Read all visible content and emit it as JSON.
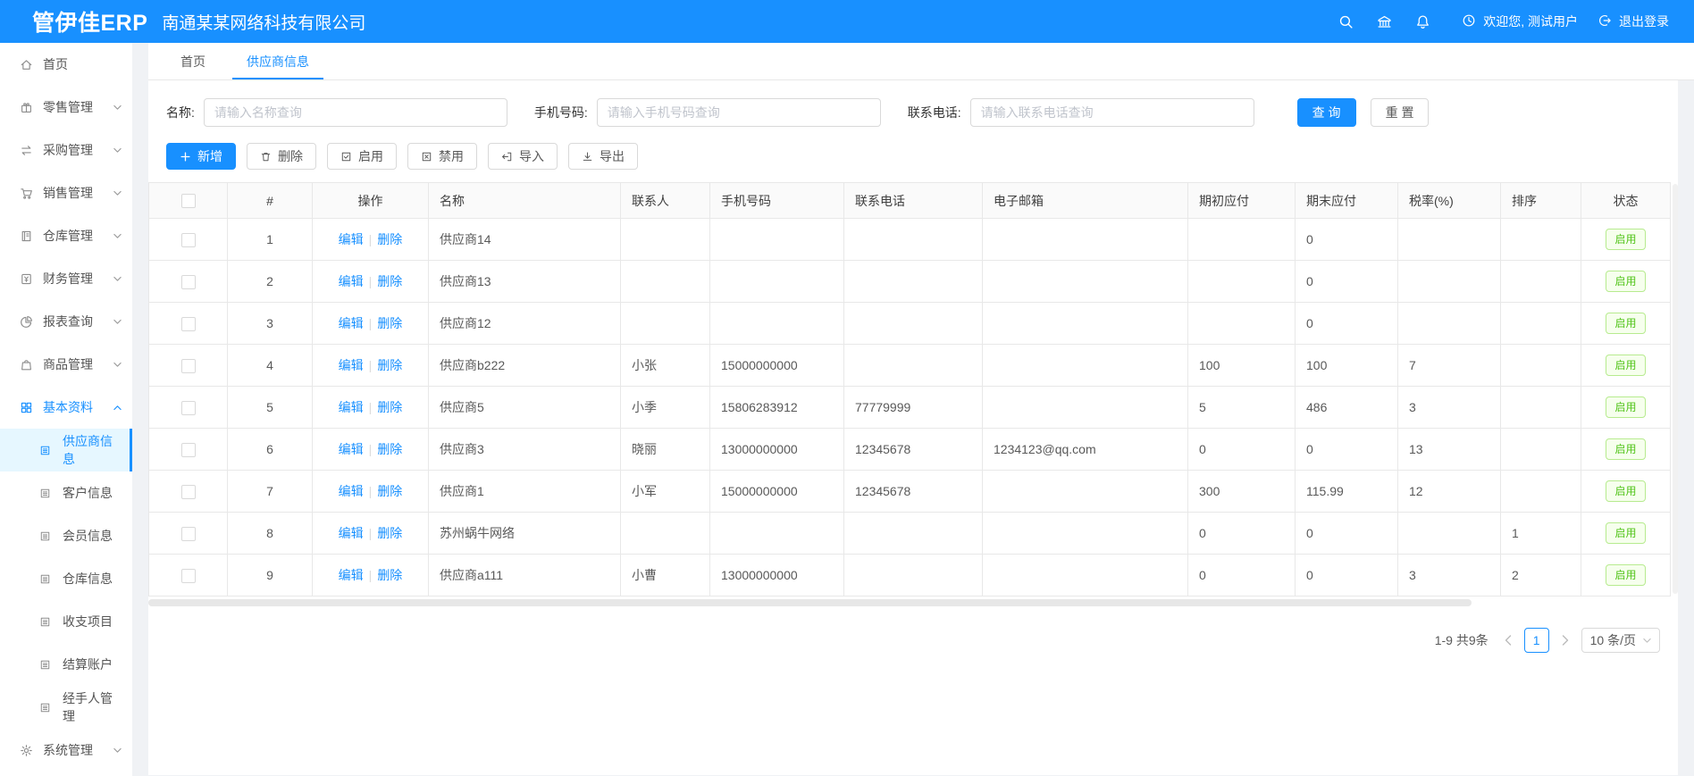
{
  "header": {
    "logo": "管伊佳ERP",
    "company": "南通某某网络科技有限公司",
    "welcome": "欢迎您, 测试用户",
    "logout": "退出登录",
    "action_icons": [
      "search-icon",
      "bank-icon",
      "bell-icon"
    ]
  },
  "sidebar": {
    "items": [
      {
        "key": "home",
        "label": "首页",
        "icon": "home-icon",
        "level": 1
      },
      {
        "key": "retail",
        "label": "零售管理",
        "icon": "gift-icon",
        "level": 1,
        "chevron": "down"
      },
      {
        "key": "purchase",
        "label": "采购管理",
        "icon": "swap-icon",
        "level": 1,
        "chevron": "down"
      },
      {
        "key": "sales",
        "label": "销售管理",
        "icon": "cart-icon",
        "level": 1,
        "chevron": "down"
      },
      {
        "key": "warehouse",
        "label": "仓库管理",
        "icon": "notebook-icon",
        "level": 1,
        "chevron": "down"
      },
      {
        "key": "finance",
        "label": "财务管理",
        "icon": "money-icon",
        "level": 1,
        "chevron": "down"
      },
      {
        "key": "reports",
        "label": "报表查询",
        "icon": "pie-chart-icon",
        "level": 1,
        "chevron": "down"
      },
      {
        "key": "goods",
        "label": "商品管理",
        "icon": "bag-icon",
        "level": 1,
        "chevron": "down"
      },
      {
        "key": "basic-data",
        "label": "基本资料",
        "icon": "grid-icon",
        "level": 1,
        "chevron": "up",
        "open": true
      },
      {
        "key": "supplier-info",
        "label": "供应商信息",
        "icon": "doc-icon",
        "level": 2,
        "selected": true
      },
      {
        "key": "customer-info",
        "label": "客户信息",
        "icon": "doc-icon",
        "level": 2
      },
      {
        "key": "member-info",
        "label": "会员信息",
        "icon": "doc-icon",
        "level": 2
      },
      {
        "key": "warehouse-info",
        "label": "仓库信息",
        "icon": "doc-icon",
        "level": 2
      },
      {
        "key": "income-expense",
        "label": "收支项目",
        "icon": "doc-icon",
        "level": 2
      },
      {
        "key": "settlement-account",
        "label": "结算账户",
        "icon": "doc-icon",
        "level": 2
      },
      {
        "key": "handler-mgmt",
        "label": "经手人管理",
        "icon": "doc-icon",
        "level": 2
      },
      {
        "key": "system",
        "label": "系统管理",
        "icon": "gear-icon",
        "level": 1,
        "chevron": "down"
      }
    ]
  },
  "tabs": [
    {
      "key": "home",
      "label": "首页",
      "active": false
    },
    {
      "key": "supplier-info",
      "label": "供应商信息",
      "active": true
    }
  ],
  "filters": {
    "fields": [
      {
        "key": "name",
        "label": "名称:",
        "placeholder": "请输入名称查询"
      },
      {
        "key": "mobile",
        "label": "手机号码:",
        "placeholder": "请输入手机号码查询"
      },
      {
        "key": "phone",
        "label": "联系电话:",
        "placeholder": "请输入联系电话查询"
      }
    ],
    "query_label": "查 询",
    "reset_label": "重 置"
  },
  "toolbar": {
    "buttons": [
      {
        "key": "add",
        "label": "新增",
        "icon": "plus-icon",
        "primary": true
      },
      {
        "key": "delete",
        "label": "删除",
        "icon": "trash-icon",
        "primary": false
      },
      {
        "key": "enable",
        "label": "启用",
        "icon": "check-square-icon",
        "primary": false
      },
      {
        "key": "disable",
        "label": "禁用",
        "icon": "close-square-icon",
        "primary": false
      },
      {
        "key": "import",
        "label": "导入",
        "icon": "import-icon",
        "primary": false
      },
      {
        "key": "export",
        "label": "导出",
        "icon": "export-icon",
        "primary": false
      }
    ]
  },
  "table": {
    "columns": [
      "#",
      "操作",
      "名称",
      "联系人",
      "手机号码",
      "联系电话",
      "电子邮箱",
      "期初应付",
      "期末应付",
      "税率(%)",
      "排序",
      "状态"
    ],
    "op_labels": [
      "编辑",
      "删除"
    ],
    "rows": [
      {
        "num": "1",
        "name": "供应商14",
        "contact": "",
        "mobile": "",
        "phone": "",
        "email": "",
        "begin_payable": "",
        "end_payable": "0",
        "tax": "",
        "sort": "",
        "status": "启用"
      },
      {
        "num": "2",
        "name": "供应商13",
        "contact": "",
        "mobile": "",
        "phone": "",
        "email": "",
        "begin_payable": "",
        "end_payable": "0",
        "tax": "",
        "sort": "",
        "status": "启用"
      },
      {
        "num": "3",
        "name": "供应商12",
        "contact": "",
        "mobile": "",
        "phone": "",
        "email": "",
        "begin_payable": "",
        "end_payable": "0",
        "tax": "",
        "sort": "",
        "status": "启用"
      },
      {
        "num": "4",
        "name": "供应商b222",
        "contact": "小张",
        "mobile": "15000000000",
        "phone": "",
        "email": "",
        "begin_payable": "100",
        "end_payable": "100",
        "tax": "7",
        "sort": "",
        "status": "启用"
      },
      {
        "num": "5",
        "name": "供应商5",
        "contact": "小季",
        "mobile": "15806283912",
        "phone": "77779999",
        "email": "",
        "begin_payable": "5",
        "end_payable": "486",
        "tax": "3",
        "sort": "",
        "status": "启用"
      },
      {
        "num": "6",
        "name": "供应商3",
        "contact": "晓丽",
        "mobile": "13000000000",
        "phone": "12345678",
        "email": "1234123@qq.com",
        "begin_payable": "0",
        "end_payable": "0",
        "tax": "13",
        "sort": "",
        "status": "启用"
      },
      {
        "num": "7",
        "name": "供应商1",
        "contact": "小军",
        "mobile": "15000000000",
        "phone": "12345678",
        "email": "",
        "begin_payable": "300",
        "end_payable": "115.99",
        "tax": "12",
        "sort": "",
        "status": "启用"
      },
      {
        "num": "8",
        "name": "苏州蜗牛网络",
        "contact": "",
        "mobile": "",
        "phone": "",
        "email": "",
        "begin_payable": "0",
        "end_payable": "0",
        "tax": "",
        "sort": "1",
        "status": "启用"
      },
      {
        "num": "9",
        "name": "供应商a111",
        "contact": "小曹",
        "mobile": "13000000000",
        "phone": "",
        "email": "",
        "begin_payable": "0",
        "end_payable": "0",
        "tax": "3",
        "sort": "2",
        "status": "启用"
      }
    ]
  },
  "pagination": {
    "summary": "1-9 共9条",
    "current_page": "1",
    "page_size": "10 条/页"
  },
  "colors": {
    "primary": "#1890ff",
    "status_green": "#52c41a",
    "status_green_bg": "#f6ffed",
    "status_green_border": "#b7eb8f"
  }
}
